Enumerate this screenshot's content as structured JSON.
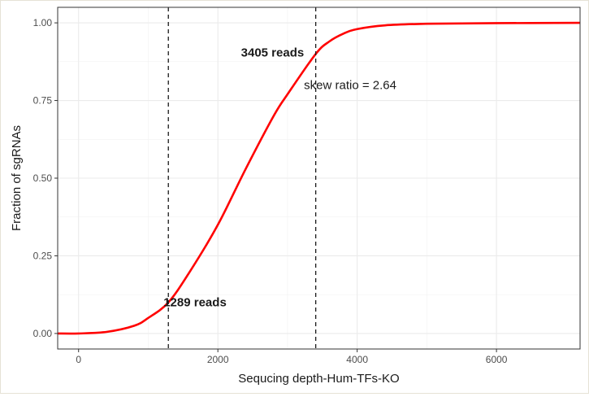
{
  "chart_data": {
    "type": "line",
    "title": "",
    "xlabel": "Sequcing depth-Hum-TFs-KO",
    "ylabel": "Fraction of sgRNAs",
    "xlim": [
      -300,
      7200
    ],
    "ylim": [
      -0.05,
      1.05
    ],
    "x_ticks": [
      0,
      2000,
      4000,
      6000
    ],
    "x_tick_labels": [
      "0",
      "2000",
      "4000",
      "6000"
    ],
    "y_ticks": [
      0,
      0.25,
      0.5,
      0.75,
      1.0
    ],
    "y_tick_labels": [
      "0.00",
      "0.25",
      "0.50",
      "0.75",
      "1.00"
    ],
    "grid": true,
    "series": [
      {
        "color": "#ff0000",
        "x": [
          -300,
          0,
          400,
          800,
          1000,
          1289,
          1600,
          2000,
          2400,
          2800,
          3000,
          3405,
          3600,
          3800,
          4000,
          4400,
          5000,
          6000,
          7200
        ],
        "y": [
          0,
          0,
          0.005,
          0.025,
          0.05,
          0.1,
          0.2,
          0.35,
          0.53,
          0.7,
          0.77,
          0.9,
          0.94,
          0.965,
          0.98,
          0.992,
          0.997,
          0.999,
          1.0
        ]
      }
    ],
    "vlines": [
      {
        "x": 1289,
        "label": "1289 reads"
      },
      {
        "x": 3405,
        "label": "3405 reads"
      }
    ],
    "annotations": [
      {
        "text": "skew ratio = 2.64",
        "x": 3900,
        "y": 0.8
      }
    ]
  }
}
